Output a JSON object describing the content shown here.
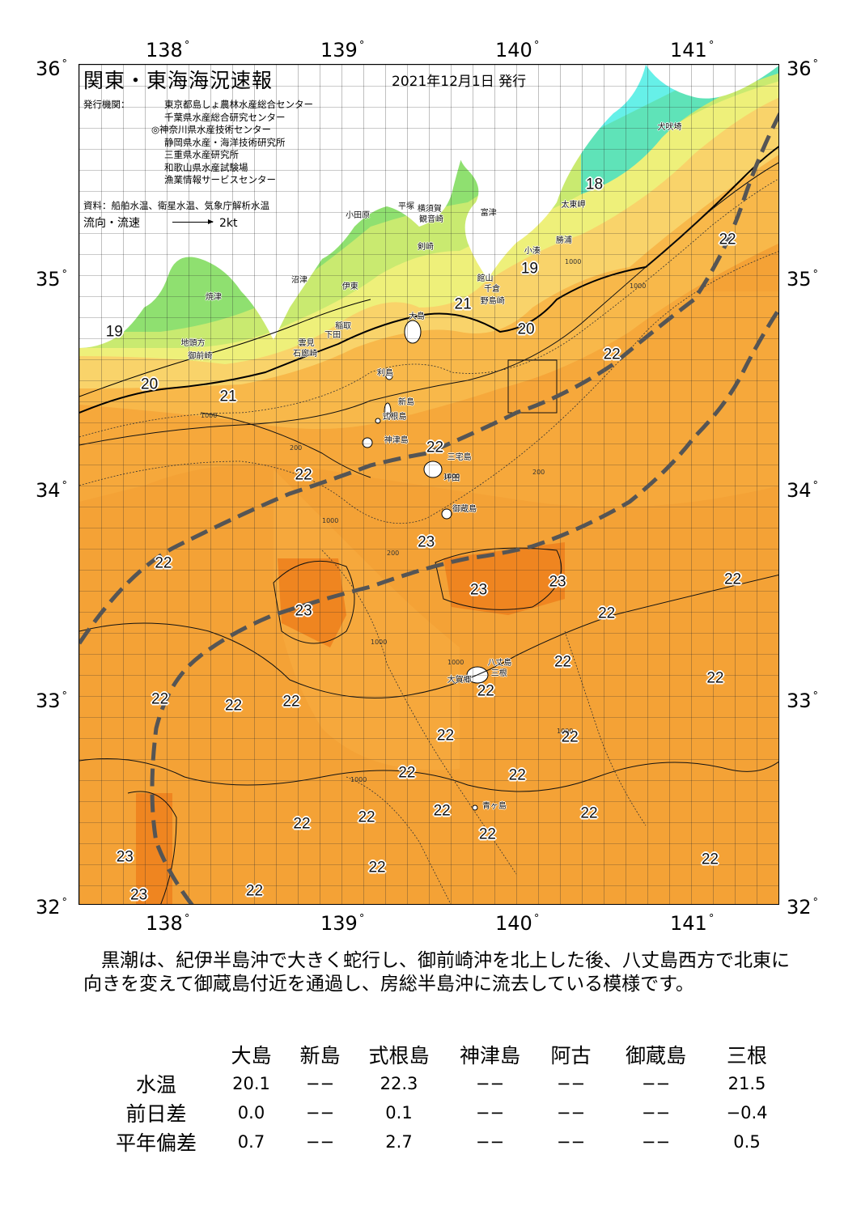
{
  "header": {
    "title": "関東・東海海況速報",
    "date": "2021年12月1日 発行",
    "agencies_label": "発行機関：",
    "agencies": [
      "東京都島しょ農林水産総合センター",
      "千葉県水産総合研究センター",
      "◎神奈川県水産技術センター",
      "静岡県水産・海洋技術研究所",
      "三重県水産研究所",
      "和歌山県水産試験場",
      "漁業情報サービスセンター"
    ],
    "source": "資料：船舶水温、衛星水温、気象庁解析水温",
    "flow_label": "流向・流速",
    "flow_unit": "2kt"
  },
  "axes": {
    "lon_labels": [
      "138",
      "139",
      "140",
      "141"
    ],
    "lat_labels": [
      "36",
      "35",
      "34",
      "33",
      "32"
    ],
    "degree": "°"
  },
  "map": {
    "temperature_labels": [
      {
        "text": "22",
        "lon": 141.2,
        "lat": 35.17
      },
      {
        "text": "19",
        "lon": 140.07,
        "lat": 35.03
      },
      {
        "text": "21",
        "lon": 139.69,
        "lat": 34.86
      },
      {
        "text": "20",
        "lon": 140.05,
        "lat": 34.74
      },
      {
        "text": "19",
        "lon": 137.7,
        "lat": 34.73
      },
      {
        "text": "22",
        "lon": 140.54,
        "lat": 34.62
      },
      {
        "text": "20",
        "lon": 137.9,
        "lat": 34.48
      },
      {
        "text": "21",
        "lon": 138.35,
        "lat": 34.42
      },
      {
        "text": "22",
        "lon": 139.53,
        "lat": 34.18
      },
      {
        "text": "22",
        "lon": 138.78,
        "lat": 34.05
      },
      {
        "text": "23",
        "lon": 139.48,
        "lat": 33.73
      },
      {
        "text": "22",
        "lon": 141.7,
        "lat": 33.72
      },
      {
        "text": "22",
        "lon": 137.98,
        "lat": 33.63
      },
      {
        "text": "22",
        "lon": 141.23,
        "lat": 33.55
      },
      {
        "text": "23",
        "lon": 140.23,
        "lat": 33.54
      },
      {
        "text": "23",
        "lon": 139.78,
        "lat": 33.5
      },
      {
        "text": "23",
        "lon": 138.78,
        "lat": 33.4
      },
      {
        "text": "22",
        "lon": 140.51,
        "lat": 33.39
      },
      {
        "text": "22",
        "lon": 140.26,
        "lat": 33.16
      },
      {
        "text": "22",
        "lon": 141.13,
        "lat": 33.08
      },
      {
        "text": "22",
        "lon": 139.82,
        "lat": 33.02
      },
      {
        "text": "22",
        "lon": 137.96,
        "lat": 32.98
      },
      {
        "text": "22",
        "lon": 138.38,
        "lat": 32.95
      },
      {
        "text": "22",
        "lon": 138.71,
        "lat": 32.97
      },
      {
        "text": "22",
        "lon": 139.59,
        "lat": 32.81
      },
      {
        "text": "22",
        "lon": 140.3,
        "lat": 32.8
      },
      {
        "text": "22",
        "lon": 139.37,
        "lat": 32.63
      },
      {
        "text": "22",
        "lon": 140.0,
        "lat": 32.62
      },
      {
        "text": "22",
        "lon": 139.57,
        "lat": 32.45
      },
      {
        "text": "22",
        "lon": 140.41,
        "lat": 32.44
      },
      {
        "text": "22",
        "lon": 139.14,
        "lat": 32.42
      },
      {
        "text": "22",
        "lon": 138.77,
        "lat": 32.39
      },
      {
        "text": "22",
        "lon": 139.83,
        "lat": 32.34
      },
      {
        "text": "23",
        "lon": 137.76,
        "lat": 32.23
      },
      {
        "text": "22",
        "lon": 141.1,
        "lat": 32.22
      },
      {
        "text": "22",
        "lon": 139.2,
        "lat": 32.18
      },
      {
        "text": "22",
        "lon": 138.5,
        "lat": 32.07
      },
      {
        "text": "23",
        "lon": 137.84,
        "lat": 32.05
      },
      {
        "text": "18",
        "lon": 140.44,
        "lat": 35.43
      }
    ],
    "place_labels": [
      {
        "text": "犬吠埼",
        "lon": 140.8,
        "lat": 35.72
      },
      {
        "text": "太東岬",
        "lon": 140.25,
        "lat": 35.35
      },
      {
        "text": "勝浦",
        "lon": 140.22,
        "lat": 35.18
      },
      {
        "text": "小湊",
        "lon": 140.04,
        "lat": 35.13
      },
      {
        "text": "富津",
        "lon": 139.79,
        "lat": 35.31
      },
      {
        "text": "館山",
        "lon": 139.77,
        "lat": 35.0
      },
      {
        "text": "千倉",
        "lon": 139.81,
        "lat": 34.95
      },
      {
        "text": "野島崎",
        "lon": 139.79,
        "lat": 34.89
      },
      {
        "text": "平塚",
        "lon": 139.32,
        "lat": 35.34
      },
      {
        "text": "横須賀",
        "lon": 139.43,
        "lat": 35.33
      },
      {
        "text": "観音崎",
        "lon": 139.44,
        "lat": 35.28
      },
      {
        "text": "小田原",
        "lon": 139.02,
        "lat": 35.3
      },
      {
        "text": "剣崎",
        "lon": 139.43,
        "lat": 35.15
      },
      {
        "text": "沼津",
        "lon": 138.71,
        "lat": 34.99
      },
      {
        "text": "伊東",
        "lon": 139.0,
        "lat": 34.96
      },
      {
        "text": "焼津",
        "lon": 138.22,
        "lat": 34.91
      },
      {
        "text": "大島",
        "lon": 139.38,
        "lat": 34.82
      },
      {
        "text": "稲取",
        "lon": 138.96,
        "lat": 34.77
      },
      {
        "text": "下田",
        "lon": 138.9,
        "lat": 34.73
      },
      {
        "text": "雲見",
        "lon": 138.75,
        "lat": 34.69
      },
      {
        "text": "石廊崎",
        "lon": 138.72,
        "lat": 34.64
      },
      {
        "text": "地頭方",
        "lon": 138.08,
        "lat": 34.69
      },
      {
        "text": "御前崎",
        "lon": 138.12,
        "lat": 34.63
      },
      {
        "text": "利島",
        "lon": 139.2,
        "lat": 34.55
      },
      {
        "text": "新島",
        "lon": 139.32,
        "lat": 34.41
      },
      {
        "text": "式根島",
        "lon": 139.23,
        "lat": 34.34
      },
      {
        "text": "神津島",
        "lon": 139.24,
        "lat": 34.23
      },
      {
        "text": "三宅島",
        "lon": 139.6,
        "lat": 34.15
      },
      {
        "text": "坪田",
        "lon": 139.58,
        "lat": 34.05
      },
      {
        "text": "御蔵島",
        "lon": 139.63,
        "lat": 33.9
      },
      {
        "text": "八丈島",
        "lon": 139.83,
        "lat": 33.17
      },
      {
        "text": "三根",
        "lon": 139.85,
        "lat": 33.12
      },
      {
        "text": "大賀郷",
        "lon": 139.6,
        "lat": 33.09
      },
      {
        "text": "青ヶ島",
        "lon": 139.8,
        "lat": 32.49
      }
    ],
    "depth_labels": [
      "1000",
      "200",
      "1000",
      "200",
      "1000",
      "200",
      "1000",
      "1000",
      "1000",
      "1000",
      "1000",
      "1000"
    ],
    "colors": {
      "deep_orange": "#f28b1e",
      "orange": "#f7a93a",
      "light_orange": "#fbc55a",
      "yellow": "#f9e27a",
      "pale_yellow": "#eef07a",
      "yellow_green": "#c9ea70",
      "green": "#8fe070",
      "green2": "#6fd880",
      "teal": "#5fe3b8",
      "cyan": "#66f0e8",
      "kuroshio": "#555555"
    }
  },
  "summary": "黒潮は、紀伊半島沖で大きく蛇行し、御前崎沖を北上した後、八丈島西方で北東に向きを変えて御蔵島付近を通過し、房総半島沖に流去している模様です。",
  "table": {
    "stations": [
      "大島",
      "新島",
      "式根島",
      "神津島",
      "阿古",
      "御蔵島",
      "三根"
    ],
    "rows": [
      {
        "label": "水温",
        "values": [
          "20.1",
          "−−",
          "22.3",
          "−−",
          "−−",
          "−−",
          "21.5"
        ]
      },
      {
        "label": "前日差",
        "values": [
          "0.0",
          "−−",
          "0.1",
          "−−",
          "−−",
          "−−",
          "−0.4"
        ]
      },
      {
        "label": "平年偏差",
        "values": [
          "0.7",
          "−−",
          "2.7",
          "−−",
          "−−",
          "−−",
          "0.5"
        ]
      }
    ]
  }
}
